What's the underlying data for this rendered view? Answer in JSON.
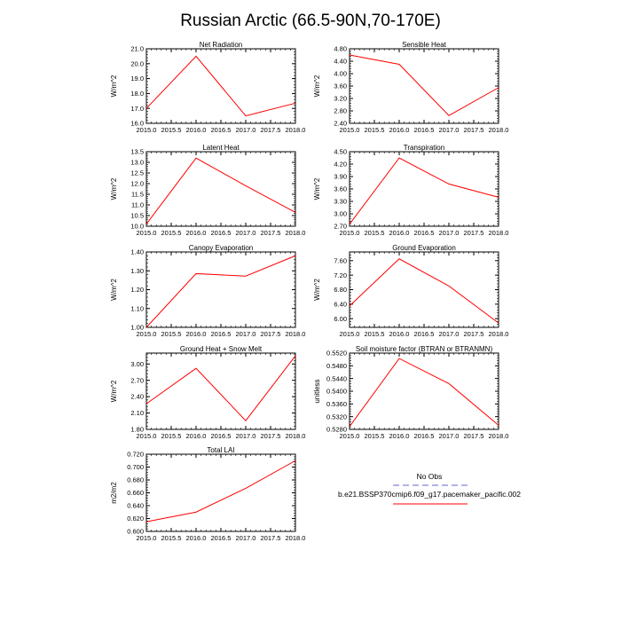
{
  "figure": {
    "title": "Russian Arctic (66.5-90N,70-170E)"
  },
  "colors": {
    "line": "#ff0000",
    "obs_line": "#9999dd",
    "axis": "#000000"
  },
  "legend": {
    "obs_label": "No Obs",
    "model_label": "b.e21.BSSP370cmip6.f09_g17.pacemaker_pacific.002"
  },
  "chart_data": [
    {
      "type": "line",
      "title": "Net Radiation",
      "ylabel": "W/m^2",
      "x": [
        2015,
        2016,
        2017,
        2018
      ],
      "values": [
        17.0,
        20.5,
        16.5,
        17.35
      ],
      "xlim": [
        2015,
        2018
      ],
      "ylim": [
        16.0,
        21.0
      ],
      "xticks": [
        "2015.0",
        "2015.5",
        "2016.0",
        "2016.5",
        "2017.0",
        "2017.5",
        "2018.0"
      ],
      "yticks": [
        "16.0",
        "17.0",
        "18.0",
        "19.0",
        "20.0",
        "21.0"
      ]
    },
    {
      "type": "line",
      "title": "Sensible Heat",
      "ylabel": "W/m^2",
      "x": [
        2015,
        2016,
        2017,
        2018
      ],
      "values": [
        4.6,
        4.3,
        2.65,
        3.55
      ],
      "xlim": [
        2015,
        2018
      ],
      "ylim": [
        2.4,
        4.8
      ],
      "xticks": [
        "2015.0",
        "2015.5",
        "2016.0",
        "2016.5",
        "2017.0",
        "2017.5",
        "2018.0"
      ],
      "yticks": [
        "2.40",
        "2.80",
        "3.20",
        "3.60",
        "4.00",
        "4.40",
        "4.80"
      ]
    },
    {
      "type": "line",
      "title": "Latent Heat",
      "ylabel": "W/m^2",
      "x": [
        2015,
        2016,
        2017,
        2018
      ],
      "values": [
        10.1,
        13.2,
        11.9,
        10.65
      ],
      "xlim": [
        2015,
        2018
      ],
      "ylim": [
        10.0,
        13.5
      ],
      "xticks": [
        "2015.0",
        "2015.5",
        "2016.0",
        "2016.5",
        "2017.0",
        "2017.5",
        "2018.0"
      ],
      "yticks": [
        "10.0",
        "10.5",
        "11.0",
        "11.5",
        "12.0",
        "12.5",
        "13.0",
        "13.5"
      ]
    },
    {
      "type": "line",
      "title": "Transpiration",
      "ylabel": "W/m^2",
      "x": [
        2015,
        2016,
        2017,
        2018
      ],
      "values": [
        2.75,
        4.35,
        3.72,
        3.4
      ],
      "xlim": [
        2015,
        2018
      ],
      "ylim": [
        2.7,
        4.5
      ],
      "xticks": [
        "2015.0",
        "2015.5",
        "2016.0",
        "2016.5",
        "2017.0",
        "2017.5",
        "2018.0"
      ],
      "yticks": [
        "2.70",
        "3.00",
        "3.30",
        "3.60",
        "3.90",
        "4.20",
        "4.50"
      ]
    },
    {
      "type": "line",
      "title": "Canopy Evaporation",
      "ylabel": "W/m^2",
      "x": [
        2015,
        2016,
        2017,
        2018
      ],
      "values": [
        1.0,
        1.285,
        1.272,
        1.38
      ],
      "xlim": [
        2015,
        2018
      ],
      "ylim": [
        1.0,
        1.4
      ],
      "xticks": [
        "2015.0",
        "2015.5",
        "2016.0",
        "2016.5",
        "2017.0",
        "2017.5",
        "2018.0"
      ],
      "yticks": [
        "1.00",
        "1.10",
        "1.20",
        "1.30",
        "1.40"
      ]
    },
    {
      "type": "line",
      "title": "Ground Evaporation",
      "ylabel": "W/m^2",
      "x": [
        2015,
        2016,
        2017,
        2018
      ],
      "values": [
        6.35,
        7.65,
        6.9,
        5.88
      ],
      "xlim": [
        2015,
        2018
      ],
      "ylim": [
        5.76,
        7.84
      ],
      "xticks": [
        "2015.0",
        "2015.5",
        "2016.0",
        "2016.5",
        "2017.0",
        "2017.5",
        "2018.0"
      ],
      "yticks": [
        "6.00",
        "6.40",
        "6.80",
        "7.20",
        "7.60"
      ]
    },
    {
      "type": "line",
      "title": "Ground Heat + Snow Melt",
      "ylabel": "W/m^2",
      "x": [
        2015,
        2016,
        2017,
        2018
      ],
      "values": [
        2.27,
        2.92,
        1.96,
        3.15
      ],
      "xlim": [
        2015,
        2018
      ],
      "ylim": [
        1.8,
        3.2
      ],
      "xticks": [
        "2015.0",
        "2015.5",
        "2016.0",
        "2016.5",
        "2017.0",
        "2017.5",
        "2018.0"
      ],
      "yticks": [
        "1.80",
        "2.10",
        "2.40",
        "2.70",
        "3.00"
      ]
    },
    {
      "type": "line",
      "title": "Soil moisture factor (BTRAN or BTRANMN)",
      "ylabel": "unitless",
      "x": [
        2015,
        2016,
        2017,
        2018
      ],
      "values": [
        0.5289,
        0.5503,
        0.5424,
        0.5293
      ],
      "xlim": [
        2015,
        2018
      ],
      "ylim": [
        0.528,
        0.552
      ],
      "xticks": [
        "2015.0",
        "2015.5",
        "2016.0",
        "2016.5",
        "2017.0",
        "2017.5",
        "2018.0"
      ],
      "yticks": [
        "0.5280",
        "0.5320",
        "0.5360",
        "0.5400",
        "0.5440",
        "0.5480",
        "0.5520"
      ]
    },
    {
      "type": "line",
      "title": "Total LAI",
      "ylabel": "m2/m2",
      "x": [
        2015,
        2016,
        2017,
        2018
      ],
      "values": [
        0.615,
        0.63,
        0.667,
        0.71
      ],
      "xlim": [
        2015,
        2018
      ],
      "ylim": [
        0.6,
        0.72
      ],
      "xticks": [
        "2015.0",
        "2015.5",
        "2016.0",
        "2016.5",
        "2017.0",
        "2017.5",
        "2018.0"
      ],
      "yticks": [
        "0.600",
        "0.620",
        "0.640",
        "0.660",
        "0.680",
        "0.700",
        "0.720"
      ]
    }
  ]
}
